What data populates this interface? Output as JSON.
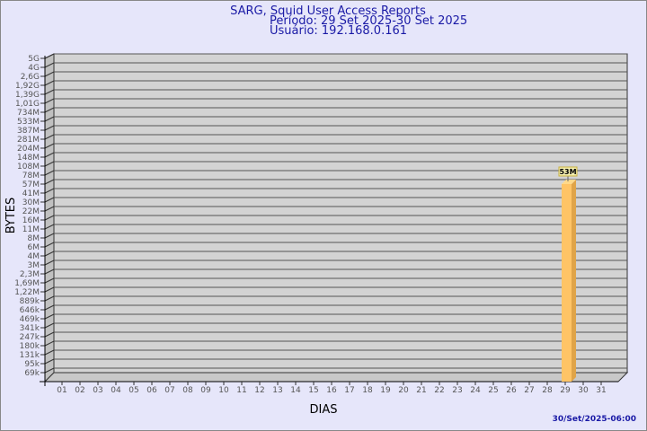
{
  "chart_data": {
    "type": "bar",
    "title": "SARG, Squid User Access Reports",
    "subtitle_period": "Período: 29 Set 2025-30 Set 2025",
    "subtitle_user": "Usuário: 192.168.0.161",
    "xlabel": "DIAS",
    "ylabel": "BYTES",
    "footer": "30/Set/2025-06:00",
    "y_scale": "log",
    "y_ticks": [
      "5G",
      "4G",
      "2,6G",
      "1,92G",
      "1,39G",
      "1,01G",
      "734M",
      "533M",
      "387M",
      "281M",
      "204M",
      "148M",
      "108M",
      "78M",
      "57M",
      "41M",
      "30M",
      "22M",
      "16M",
      "11M",
      "8M",
      "6M",
      "4M",
      "3M",
      "2,3M",
      "1,69M",
      "1,22M",
      "889k",
      "646k",
      "469k",
      "341k",
      "247k",
      "180k",
      "131k",
      "95k",
      "69k"
    ],
    "categories": [
      "01",
      "02",
      "03",
      "04",
      "05",
      "06",
      "07",
      "08",
      "09",
      "10",
      "11",
      "12",
      "13",
      "14",
      "15",
      "16",
      "17",
      "18",
      "19",
      "20",
      "21",
      "22",
      "23",
      "24",
      "25",
      "26",
      "27",
      "28",
      "29",
      "30",
      "31"
    ],
    "bars": [
      {
        "category": "29",
        "value": "53M",
        "label": "53M"
      }
    ],
    "grid": true,
    "colors": {
      "bar": "#ffc466",
      "bar_side": "#e0a448",
      "wall": "#d3d3d3",
      "background": "#e6e6fa",
      "text": "#1a1aa6"
    }
  }
}
